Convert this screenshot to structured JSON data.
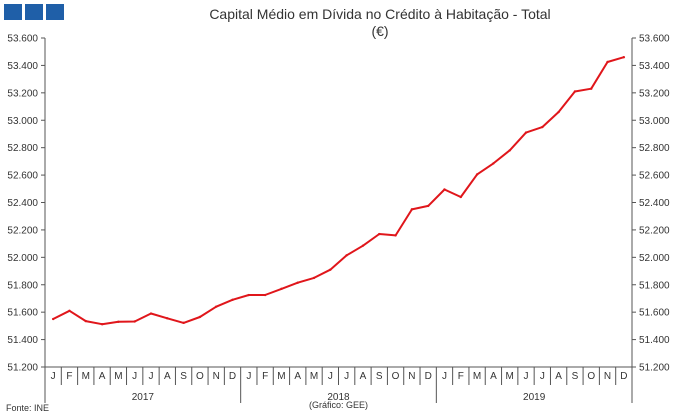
{
  "header": {
    "logo_color": "#1f5fa8"
  },
  "chart_data": {
    "type": "line",
    "title": "Capital Médio em Dívida no Crédito à Habitação - Total",
    "subtitle": "(€)",
    "source": "Fonte: INE",
    "credit": "(Gráfico: GEE)",
    "month_labels": [
      "J",
      "F",
      "M",
      "A",
      "M",
      "J",
      "J",
      "A",
      "S",
      "O",
      "N",
      "D",
      "J",
      "F",
      "M",
      "A",
      "M",
      "J",
      "J",
      "A",
      "S",
      "O",
      "N",
      "D",
      "J",
      "F",
      "M",
      "A",
      "M",
      "J",
      "J",
      "A",
      "S",
      "O",
      "N",
      "D"
    ],
    "year_labels": [
      "2017",
      "2018",
      "2019"
    ],
    "y_ticks": [
      "51.200",
      "51.400",
      "51.600",
      "51.800",
      "52.000",
      "52.200",
      "52.400",
      "52.600",
      "52.800",
      "53.000",
      "53.200",
      "53.400",
      "53.600"
    ],
    "ylim": [
      51200,
      53600
    ],
    "line_color": "#e0161b",
    "series": [
      {
        "values": [
          51550,
          51610,
          51535,
          51512,
          51530,
          51532,
          51590,
          51555,
          51522,
          51565,
          51640,
          51690,
          51725,
          51725,
          51770,
          51815,
          51850,
          51910,
          52015,
          52085,
          52170,
          52160,
          52350,
          52375,
          52495,
          52440,
          52605,
          52685,
          52780,
          52910,
          52950,
          53060,
          53210,
          53230,
          53425,
          53460
        ]
      }
    ]
  }
}
